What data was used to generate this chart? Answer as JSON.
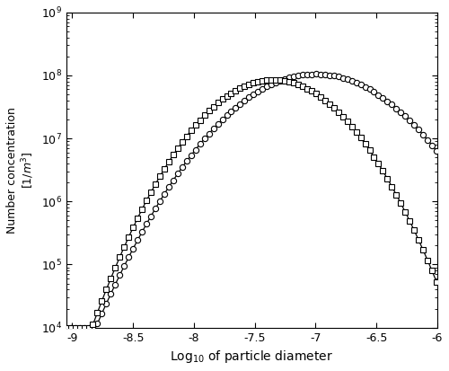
{
  "title": "",
  "xlabel": "Log$_{10}$ of particle diameter",
  "ylabel": "Number concentration\n[$1/m^3$]",
  "xlim": [
    -9.05,
    -6.0
  ],
  "ylim_log": [
    4,
    9
  ],
  "x_ticks": [
    -9,
    -8.5,
    -8,
    -7.5,
    -7,
    -6.5,
    -6
  ],
  "x_tick_labels": [
    "-9",
    "-8.5",
    "-8",
    "-7.5",
    "-7",
    "-6.5",
    "-6"
  ],
  "circle_color": "#000000",
  "square_color": "#000000",
  "marker_size_circle": 4.5,
  "marker_size_square": 4.5,
  "n_points": 500,
  "x_start": -9.05,
  "x_end": -6.0,
  "background_color": "#ffffff",
  "line_width": 0.9,
  "mu_circle": -7.0,
  "sigma_circle": 0.42,
  "peak_circle": 105000000.0,
  "mu_square": -7.35,
  "sigma_square": 0.35,
  "peak_square": 85000000.0,
  "marker_every": 6
}
